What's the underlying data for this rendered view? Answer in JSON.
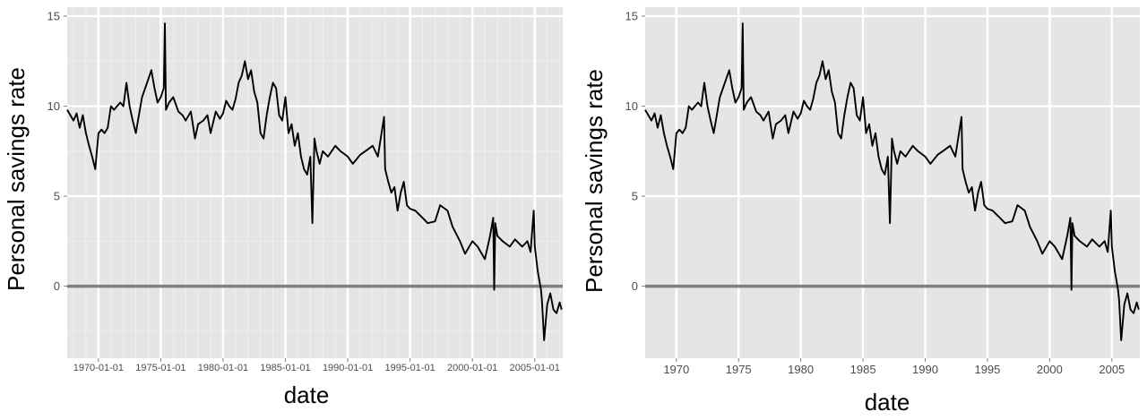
{
  "chart_data": [
    {
      "type": "line",
      "xlabel": "date",
      "ylabel": "Personal savings rate",
      "xlim": [
        "1967-07-01",
        "2007-04-01"
      ],
      "ylim": [
        -4,
        15.5
      ],
      "y_ticks": [
        0,
        5,
        10,
        15
      ],
      "x_ticks": [
        "1970-01-01",
        "1975-01-01",
        "1980-01-01",
        "1985-01-01",
        "1990-01-01",
        "1995-01-01",
        "2000-01-01",
        "2005-01-01"
      ],
      "x_tick_labels": [
        "1970-01-01",
        "1975-01-01",
        "1980-01-01",
        "1985-01-01",
        "1990-01-01",
        "1995-01-01",
        "2000-01-01",
        "2005-01-01"
      ],
      "hline": 0,
      "grid": true,
      "minor_grid": true,
      "line_color": "#000000",
      "hline_color": "#7f7f7f",
      "panel_color": "#e5e5e5",
      "series": [
        {
          "x": [
            "1967-07-01",
            "1967-10-01",
            "1968-01-01",
            "1968-04-01",
            "1968-07-01",
            "1968-10-01",
            "1969-01-01",
            "1969-04-01",
            "1969-07-01",
            "1969-10-01",
            "1970-01-01",
            "1970-04-01",
            "1970-07-01",
            "1970-10-01",
            "1971-01-01",
            "1971-04-01",
            "1971-07-01",
            "1971-10-01",
            "1972-01-01",
            "1972-04-01",
            "1972-07-01",
            "1972-10-01",
            "1973-01-01",
            "1973-04-01",
            "1973-07-01",
            "1973-10-01",
            "1974-01-01",
            "1974-04-01",
            "1974-07-01",
            "1974-10-01",
            "1975-01-01",
            "1975-04-01",
            "1975-05-01",
            "1975-06-01",
            "1975-09-01",
            "1976-01-01",
            "1976-06-01",
            "1976-10-01",
            "1977-01-01",
            "1977-06-01",
            "1977-10-01",
            "1978-01-01",
            "1978-06-01",
            "1978-10-01",
            "1979-01-01",
            "1979-06-01",
            "1979-10-01",
            "1980-01-01",
            "1980-04-01",
            "1980-07-01",
            "1980-10-01",
            "1981-01-01",
            "1981-04-01",
            "1981-07-01",
            "1981-10-01",
            "1982-01-01",
            "1982-04-01",
            "1982-07-01",
            "1982-10-01",
            "1983-01-01",
            "1983-04-01",
            "1983-07-01",
            "1983-10-01",
            "1984-01-01",
            "1984-04-01",
            "1984-07-01",
            "1984-10-01",
            "1985-01-01",
            "1985-04-01",
            "1985-07-01",
            "1985-10-01",
            "1986-01-01",
            "1986-04-01",
            "1986-07-01",
            "1986-10-01",
            "1987-01-01",
            "1987-03-01",
            "1987-05-01",
            "1987-07-01",
            "1987-10-01",
            "1988-01-01",
            "1988-06-01",
            "1989-01-01",
            "1989-06-01",
            "1990-01-01",
            "1990-06-01",
            "1991-01-01",
            "1991-06-01",
            "1992-01-01",
            "1992-06-01",
            "1992-12-01",
            "1993-01-01",
            "1993-04-01",
            "1993-07-01",
            "1993-10-01",
            "1994-01-01",
            "1994-04-01",
            "1994-07-01",
            "1994-10-01",
            "1995-01-01",
            "1995-06-01",
            "1996-01-01",
            "1996-06-01",
            "1997-01-01",
            "1997-06-01",
            "1998-01-01",
            "1998-06-01",
            "1999-01-01",
            "1999-06-01",
            "2000-01-01",
            "2000-06-01",
            "2001-01-01",
            "2001-06-01",
            "2001-09-01",
            "2001-10-01",
            "2001-11-01",
            "2002-01-01",
            "2002-06-01",
            "2003-01-01",
            "2003-06-01",
            "2004-01-01",
            "2004-06-01",
            "2004-09-01",
            "2004-12-01",
            "2005-01-01",
            "2005-04-01",
            "2005-07-01",
            "2005-08-01",
            "2005-10-01",
            "2006-01-01",
            "2006-04-01",
            "2006-07-01",
            "2006-10-01",
            "2007-01-01",
            "2007-03-01"
          ],
          "values": [
            9.8,
            9.5,
            9.2,
            9.6,
            8.8,
            9.5,
            8.5,
            7.8,
            7.2,
            6.5,
            8.5,
            8.7,
            8.5,
            8.8,
            10,
            9.8,
            10,
            10.2,
            10,
            11.3,
            10,
            9.2,
            8.5,
            9.5,
            10.5,
            11,
            11.5,
            12,
            11,
            10.2,
            10.5,
            11,
            14.6,
            9.8,
            10.2,
            10.5,
            9.7,
            9.5,
            9.2,
            9.7,
            8.2,
            9,
            9.2,
            9.5,
            8.5,
            9.7,
            9.3,
            9.6,
            10.3,
            10,
            9.8,
            10.4,
            11.3,
            11.7,
            12.5,
            11.5,
            12,
            10.8,
            10.2,
            8.5,
            8.2,
            9.5,
            10.5,
            11.3,
            11,
            9.5,
            9.2,
            10.5,
            8.5,
            9,
            7.8,
            8.5,
            7.2,
            6.5,
            6.2,
            7.2,
            3.5,
            8.2,
            7.5,
            6.8,
            7.5,
            7.2,
            7.8,
            7.5,
            7.2,
            6.8,
            7.3,
            7.5,
            7.8,
            7.2,
            9.4,
            6.5,
            5.8,
            5.2,
            5.5,
            4.2,
            5.2,
            5.8,
            4.5,
            4.3,
            4.2,
            3.8,
            3.5,
            3.6,
            4.5,
            4.2,
            3.3,
            2.5,
            1.8,
            2.5,
            2.2,
            1.5,
            2.8,
            3.8,
            -0.2,
            3.5,
            2.8,
            2.5,
            2.2,
            2.6,
            2.2,
            2.5,
            1.9,
            4.2,
            2.2,
            0.8,
            -0.2,
            -0.8,
            -3,
            -1,
            -0.4,
            -1.3,
            -1.5,
            -0.9,
            -1.3
          ]
        }
      ]
    },
    {
      "type": "line",
      "xlabel": "date",
      "ylabel": "Personal savings rate",
      "xlim": [
        "1967-07-01",
        "2007-04-01"
      ],
      "ylim": [
        -4,
        15.5
      ],
      "y_ticks": [
        0,
        5,
        10,
        15
      ],
      "x_ticks": [
        "1970-01-01",
        "1975-01-01",
        "1980-01-01",
        "1985-01-01",
        "1990-01-01",
        "1995-01-01",
        "2000-01-01",
        "2005-01-01"
      ],
      "x_tick_labels": [
        "1970",
        "1975",
        "1980",
        "1985",
        "1990",
        "1995",
        "2000",
        "2005"
      ],
      "hline": 0,
      "grid": true,
      "minor_grid": false,
      "line_color": "#000000",
      "hline_color": "#7f7f7f",
      "panel_color": "#e5e5e5",
      "series": [
        {
          "x": [
            "1967-07-01",
            "1967-10-01",
            "1968-01-01",
            "1968-04-01",
            "1968-07-01",
            "1968-10-01",
            "1969-01-01",
            "1969-04-01",
            "1969-07-01",
            "1969-10-01",
            "1970-01-01",
            "1970-04-01",
            "1970-07-01",
            "1970-10-01",
            "1971-01-01",
            "1971-04-01",
            "1971-07-01",
            "1971-10-01",
            "1972-01-01",
            "1972-04-01",
            "1972-07-01",
            "1972-10-01",
            "1973-01-01",
            "1973-04-01",
            "1973-07-01",
            "1973-10-01",
            "1974-01-01",
            "1974-04-01",
            "1974-07-01",
            "1974-10-01",
            "1975-01-01",
            "1975-04-01",
            "1975-05-01",
            "1975-06-01",
            "1975-09-01",
            "1976-01-01",
            "1976-06-01",
            "1976-10-01",
            "1977-01-01",
            "1977-06-01",
            "1977-10-01",
            "1978-01-01",
            "1978-06-01",
            "1978-10-01",
            "1979-01-01",
            "1979-06-01",
            "1979-10-01",
            "1980-01-01",
            "1980-04-01",
            "1980-07-01",
            "1980-10-01",
            "1981-01-01",
            "1981-04-01",
            "1981-07-01",
            "1981-10-01",
            "1982-01-01",
            "1982-04-01",
            "1982-07-01",
            "1982-10-01",
            "1983-01-01",
            "1983-04-01",
            "1983-07-01",
            "1983-10-01",
            "1984-01-01",
            "1984-04-01",
            "1984-07-01",
            "1984-10-01",
            "1985-01-01",
            "1985-04-01",
            "1985-07-01",
            "1985-10-01",
            "1986-01-01",
            "1986-04-01",
            "1986-07-01",
            "1986-10-01",
            "1987-01-01",
            "1987-03-01",
            "1987-05-01",
            "1987-07-01",
            "1987-10-01",
            "1988-01-01",
            "1988-06-01",
            "1989-01-01",
            "1989-06-01",
            "1990-01-01",
            "1990-06-01",
            "1991-01-01",
            "1991-06-01",
            "1992-01-01",
            "1992-06-01",
            "1992-12-01",
            "1993-01-01",
            "1993-04-01",
            "1993-07-01",
            "1993-10-01",
            "1994-01-01",
            "1994-04-01",
            "1994-07-01",
            "1994-10-01",
            "1995-01-01",
            "1995-06-01",
            "1996-01-01",
            "1996-06-01",
            "1997-01-01",
            "1997-06-01",
            "1998-01-01",
            "1998-06-01",
            "1999-01-01",
            "1999-06-01",
            "2000-01-01",
            "2000-06-01",
            "2001-01-01",
            "2001-06-01",
            "2001-09-01",
            "2001-10-01",
            "2001-11-01",
            "2002-01-01",
            "2002-06-01",
            "2003-01-01",
            "2003-06-01",
            "2004-01-01",
            "2004-06-01",
            "2004-09-01",
            "2004-12-01",
            "2005-01-01",
            "2005-04-01",
            "2005-07-01",
            "2005-08-01",
            "2005-10-01",
            "2006-01-01",
            "2006-04-01",
            "2006-07-01",
            "2006-10-01",
            "2007-01-01",
            "2007-03-01"
          ],
          "values": [
            9.8,
            9.5,
            9.2,
            9.6,
            8.8,
            9.5,
            8.5,
            7.8,
            7.2,
            6.5,
            8.5,
            8.7,
            8.5,
            8.8,
            10,
            9.8,
            10,
            10.2,
            10,
            11.3,
            10,
            9.2,
            8.5,
            9.5,
            10.5,
            11,
            11.5,
            12,
            11,
            10.2,
            10.5,
            11,
            14.6,
            9.8,
            10.2,
            10.5,
            9.7,
            9.5,
            9.2,
            9.7,
            8.2,
            9,
            9.2,
            9.5,
            8.5,
            9.7,
            9.3,
            9.6,
            10.3,
            10,
            9.8,
            10.4,
            11.3,
            11.7,
            12.5,
            11.5,
            12,
            10.8,
            10.2,
            8.5,
            8.2,
            9.5,
            10.5,
            11.3,
            11,
            9.5,
            9.2,
            10.5,
            8.5,
            9,
            7.8,
            8.5,
            7.2,
            6.5,
            6.2,
            7.2,
            3.5,
            8.2,
            7.5,
            6.8,
            7.5,
            7.2,
            7.8,
            7.5,
            7.2,
            6.8,
            7.3,
            7.5,
            7.8,
            7.2,
            9.4,
            6.5,
            5.8,
            5.2,
            5.5,
            4.2,
            5.2,
            5.8,
            4.5,
            4.3,
            4.2,
            3.8,
            3.5,
            3.6,
            4.5,
            4.2,
            3.3,
            2.5,
            1.8,
            2.5,
            2.2,
            1.5,
            2.8,
            3.8,
            -0.2,
            3.5,
            2.8,
            2.5,
            2.2,
            2.6,
            2.2,
            2.5,
            1.9,
            4.2,
            2.2,
            0.8,
            -0.2,
            -0.8,
            -3,
            -1,
            -0.4,
            -1.3,
            -1.5,
            -0.9,
            -1.3
          ]
        }
      ]
    }
  ]
}
